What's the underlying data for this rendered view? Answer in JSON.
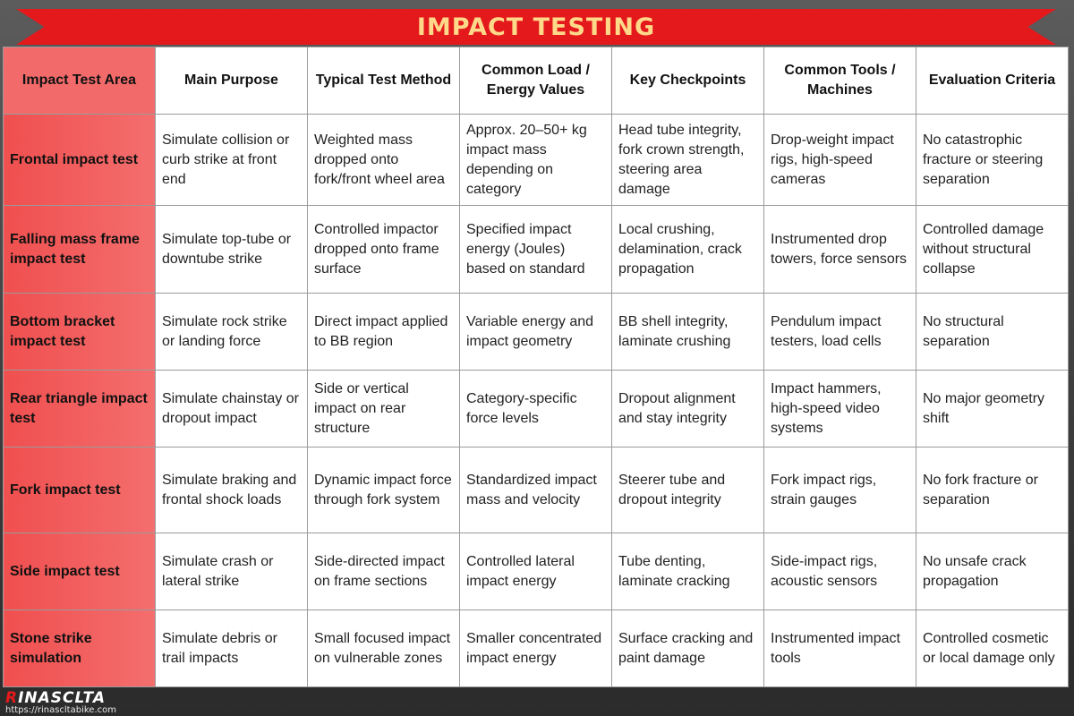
{
  "title": "IMPACT TESTING",
  "table": {
    "headers": [
      "Impact Test Area",
      "Main Purpose",
      "Typical Test Method",
      "Common Load / Energy Values",
      "Key Checkpoints",
      "Common Tools / Machines",
      "Evaluation Criteria"
    ],
    "rows": [
      [
        "Frontal impact test",
        "Simulate collision or curb strike at front end",
        "Weighted mass dropped onto fork/front wheel area",
        "Approx. 20–50+ kg impact mass depending on category",
        "Head tube integrity, fork crown strength, steering area damage",
        "Drop-weight impact rigs, high-speed cameras",
        "No catastrophic fracture or steering separation"
      ],
      [
        "Falling mass frame impact test",
        "Simulate top-tube or downtube strike",
        "Controlled impactor dropped onto frame surface",
        "Specified impact energy (Joules) based on standard",
        "Local crushing, delamination, crack propagation",
        "Instrumented drop towers, force sensors",
        "Controlled damage without structural collapse"
      ],
      [
        "Bottom bracket impact test",
        "Simulate rock strike or landing force",
        "Direct impact applied to BB region",
        "Variable energy and impact geometry",
        "BB shell integrity, laminate crushing",
        "Pendulum impact testers, load cells",
        "No structural separation"
      ],
      [
        "Rear triangle impact test",
        "Simulate chainstay or dropout impact",
        "Side or vertical impact on rear structure",
        "Category-specific force levels",
        "Dropout alignment and stay integrity",
        "Impact hammers, high-speed video systems",
        "No major geometry shift"
      ],
      [
        "Fork impact test",
        "Simulate braking and frontal shock loads",
        "Dynamic impact force through fork system",
        "Standardized impact mass and velocity",
        "Steerer tube and dropout integrity",
        "Fork impact rigs, strain gauges",
        "No fork fracture or separation"
      ],
      [
        "Side impact test",
        "Simulate crash or lateral strike",
        "Side-directed impact on frame sections",
        "Controlled lateral impact energy",
        "Tube denting, laminate cracking",
        "Side-impact rigs, acoustic sensors",
        "No unsafe crack propagation"
      ],
      [
        "Stone strike simulation",
        "Simulate debris or trail impacts",
        "Small focused impact on vulnerable zones",
        "Smaller concentrated impact energy",
        "Surface cracking and paint damage",
        "Instrumented impact tools",
        "Controlled cosmetic or local damage only"
      ]
    ]
  },
  "footer": {
    "logo_first": "R",
    "logo_rest": "INASCLTA",
    "url": "https://rinascltabike.com"
  },
  "colors": {
    "banner": "#e4191c",
    "title_text": "#ffd98a",
    "first_column": "#f26a6a"
  }
}
